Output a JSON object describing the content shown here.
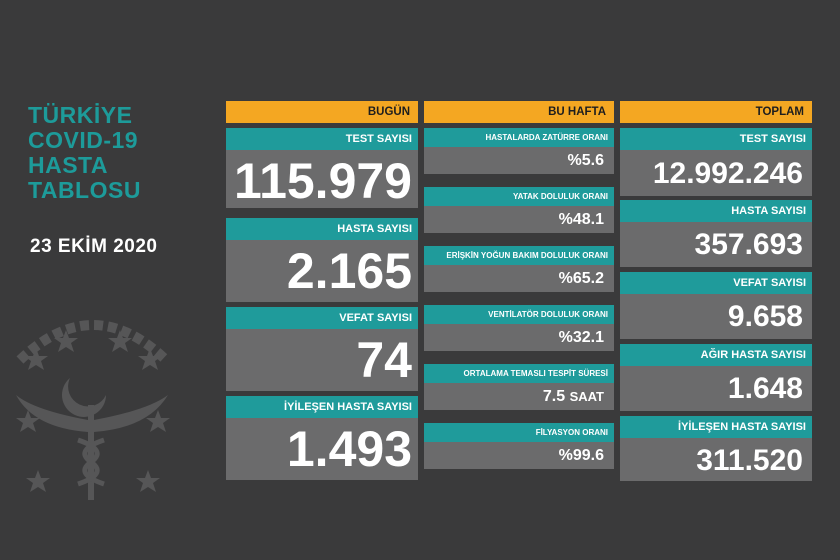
{
  "title_lines": [
    "TÜRKİYE",
    "COVID-19",
    "HASTA",
    "TABLOSU"
  ],
  "date": "23 EKİM 2020",
  "columns": {
    "today": {
      "header": "BUGÜN",
      "cards": [
        {
          "label": "TEST SAYISI",
          "value": "115.979"
        },
        {
          "label": "HASTA SAYISI",
          "value": "2.165"
        },
        {
          "label": "VEFAT SAYISI",
          "value": "74"
        },
        {
          "label": "İYİLEŞEN HASTA SAYISI",
          "value": "1.493"
        }
      ]
    },
    "this_week": {
      "header": "BU HAFTA",
      "cards": [
        {
          "label": "HASTALARDA ZATÜRRE ORANI",
          "value": "%5.6",
          "unit": ""
        },
        {
          "label": "YATAK DOLULUK ORANI",
          "value": "%48.1",
          "unit": ""
        },
        {
          "label": "ERİŞKİN YOĞUN BAKIM DOLULUK ORANI",
          "value": "%65.2",
          "unit": ""
        },
        {
          "label": "VENTİLATÖR DOLULUK ORANI",
          "value": "%32.1",
          "unit": ""
        },
        {
          "label": "ORTALAMA TEMASLI TESPİT SÜRESİ",
          "value": "7.5",
          "unit": "SAAT"
        },
        {
          "label": "FİLYASYON ORANI",
          "value": "%99.6",
          "unit": ""
        }
      ]
    },
    "total": {
      "header": "TOPLAM",
      "cards": [
        {
          "label": "TEST SAYISI",
          "value": "12.992.246"
        },
        {
          "label": "HASTA SAYISI",
          "value": "357.693"
        },
        {
          "label": "VEFAT SAYISI",
          "value": "9.658"
        },
        {
          "label": "AĞIR HASTA SAYISI",
          "value": "1.648"
        },
        {
          "label": "İYİLEŞEN HASTA SAYISI",
          "value": "311.520"
        }
      ]
    }
  },
  "colors": {
    "background": "#3a3a3b",
    "header": "#f4a722",
    "label": "#1f9b9b",
    "value_box": "#6b6b6c",
    "title": "#1d9b9a"
  },
  "emblem": "ministry-of-health-emblem"
}
